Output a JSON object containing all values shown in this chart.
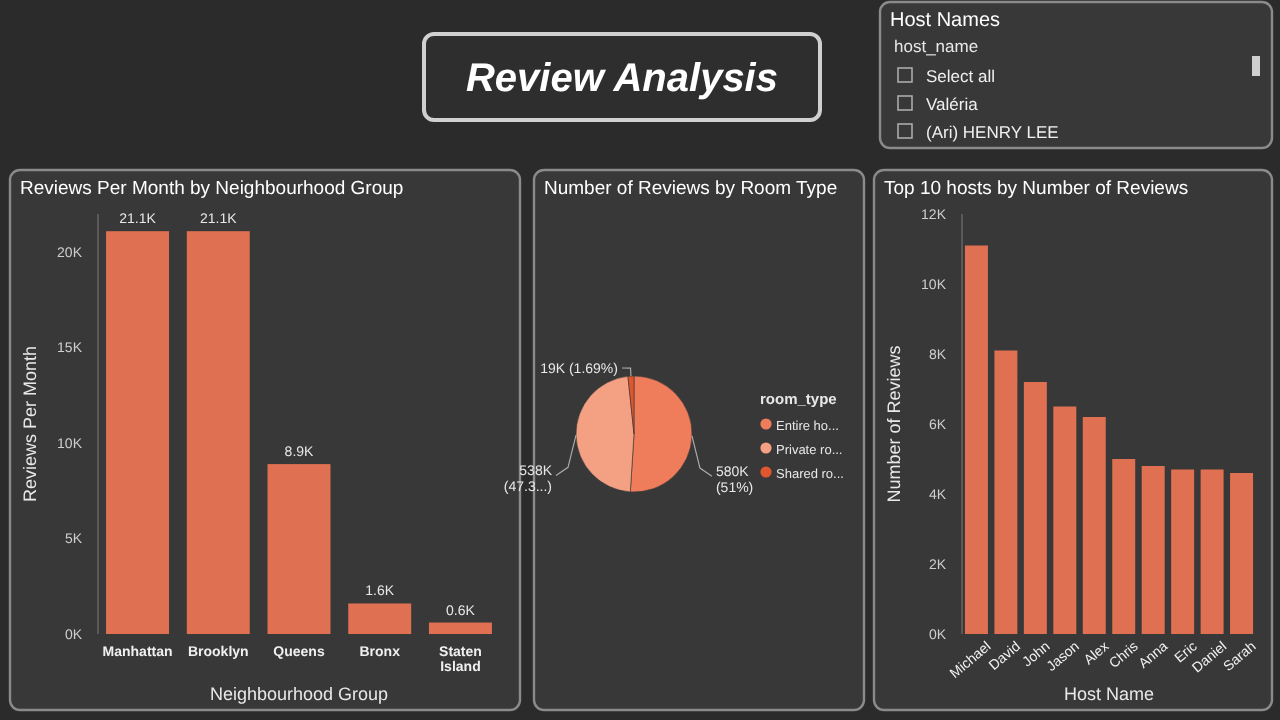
{
  "chart_data": [
    {
      "type": "other",
      "title": "Review Analysis"
    },
    {
      "type": "other",
      "title": "Host Names",
      "subtitle": "host_name",
      "annotations": [
        "Select all",
        "Valéria",
        "(Ari) HENRY LEE"
      ]
    },
    {
      "type": "bar",
      "title": "Reviews Per Month by Neighbourhood Group",
      "xlabel": "Neighbourhood Group",
      "ylabel": "Reviews Per Month",
      "categories": [
        "Manhattan",
        "Brooklyn",
        "Queens",
        "Bronx",
        "Staten Island"
      ],
      "values": [
        21100,
        21100,
        8900,
        1600,
        600
      ],
      "value_labels": [
        "21.1K",
        "21.1K",
        "8.9K",
        "1.6K",
        "0.6K"
      ],
      "color": "#e07052",
      "ylim": [
        0,
        22000
      ],
      "yticks": [
        {
          "value": 0,
          "label": "0K"
        },
        {
          "value": 5000,
          "label": "5K"
        },
        {
          "value": 10000,
          "label": "10K"
        },
        {
          "value": 15000,
          "label": "15K"
        },
        {
          "value": 20000,
          "label": "20K"
        }
      ],
      "grid": false
    },
    {
      "type": "pie",
      "title": "Number of Reviews by Room Type",
      "legend_title": "room_type",
      "legend": "right",
      "categories": [
        "Entire ho...",
        "Private ro...",
        "Shared ro..."
      ],
      "values": [
        580000,
        538000,
        19000
      ],
      "value_labels": [
        "580K (51%)",
        "538K (47.3...)",
        "19K (1.69%)"
      ],
      "colors": [
        "#ef7d5b",
        "#f4a183",
        "#e0562f"
      ]
    },
    {
      "type": "bar",
      "title": "Top 10 hosts by Number of Reviews",
      "xlabel": "Host Name",
      "ylabel": "Number of Reviews",
      "categories": [
        "Michael",
        "David",
        "John",
        "Jason",
        "Alex",
        "Chris",
        "Anna",
        "Eric",
        "Daniel",
        "Sarah"
      ],
      "values": [
        11100,
        8100,
        7200,
        6500,
        6200,
        5000,
        4800,
        4700,
        4700,
        4600
      ],
      "color": "#e07052",
      "ylim": [
        0,
        12000
      ],
      "yticks": [
        {
          "value": 0,
          "label": "0K"
        },
        {
          "value": 2000,
          "label": "2K"
        },
        {
          "value": 4000,
          "label": "4K"
        },
        {
          "value": 6000,
          "label": "6K"
        },
        {
          "value": 8000,
          "label": "8K"
        },
        {
          "value": 10000,
          "label": "10K"
        },
        {
          "value": 12000,
          "label": "12K"
        }
      ],
      "grid": false
    }
  ]
}
